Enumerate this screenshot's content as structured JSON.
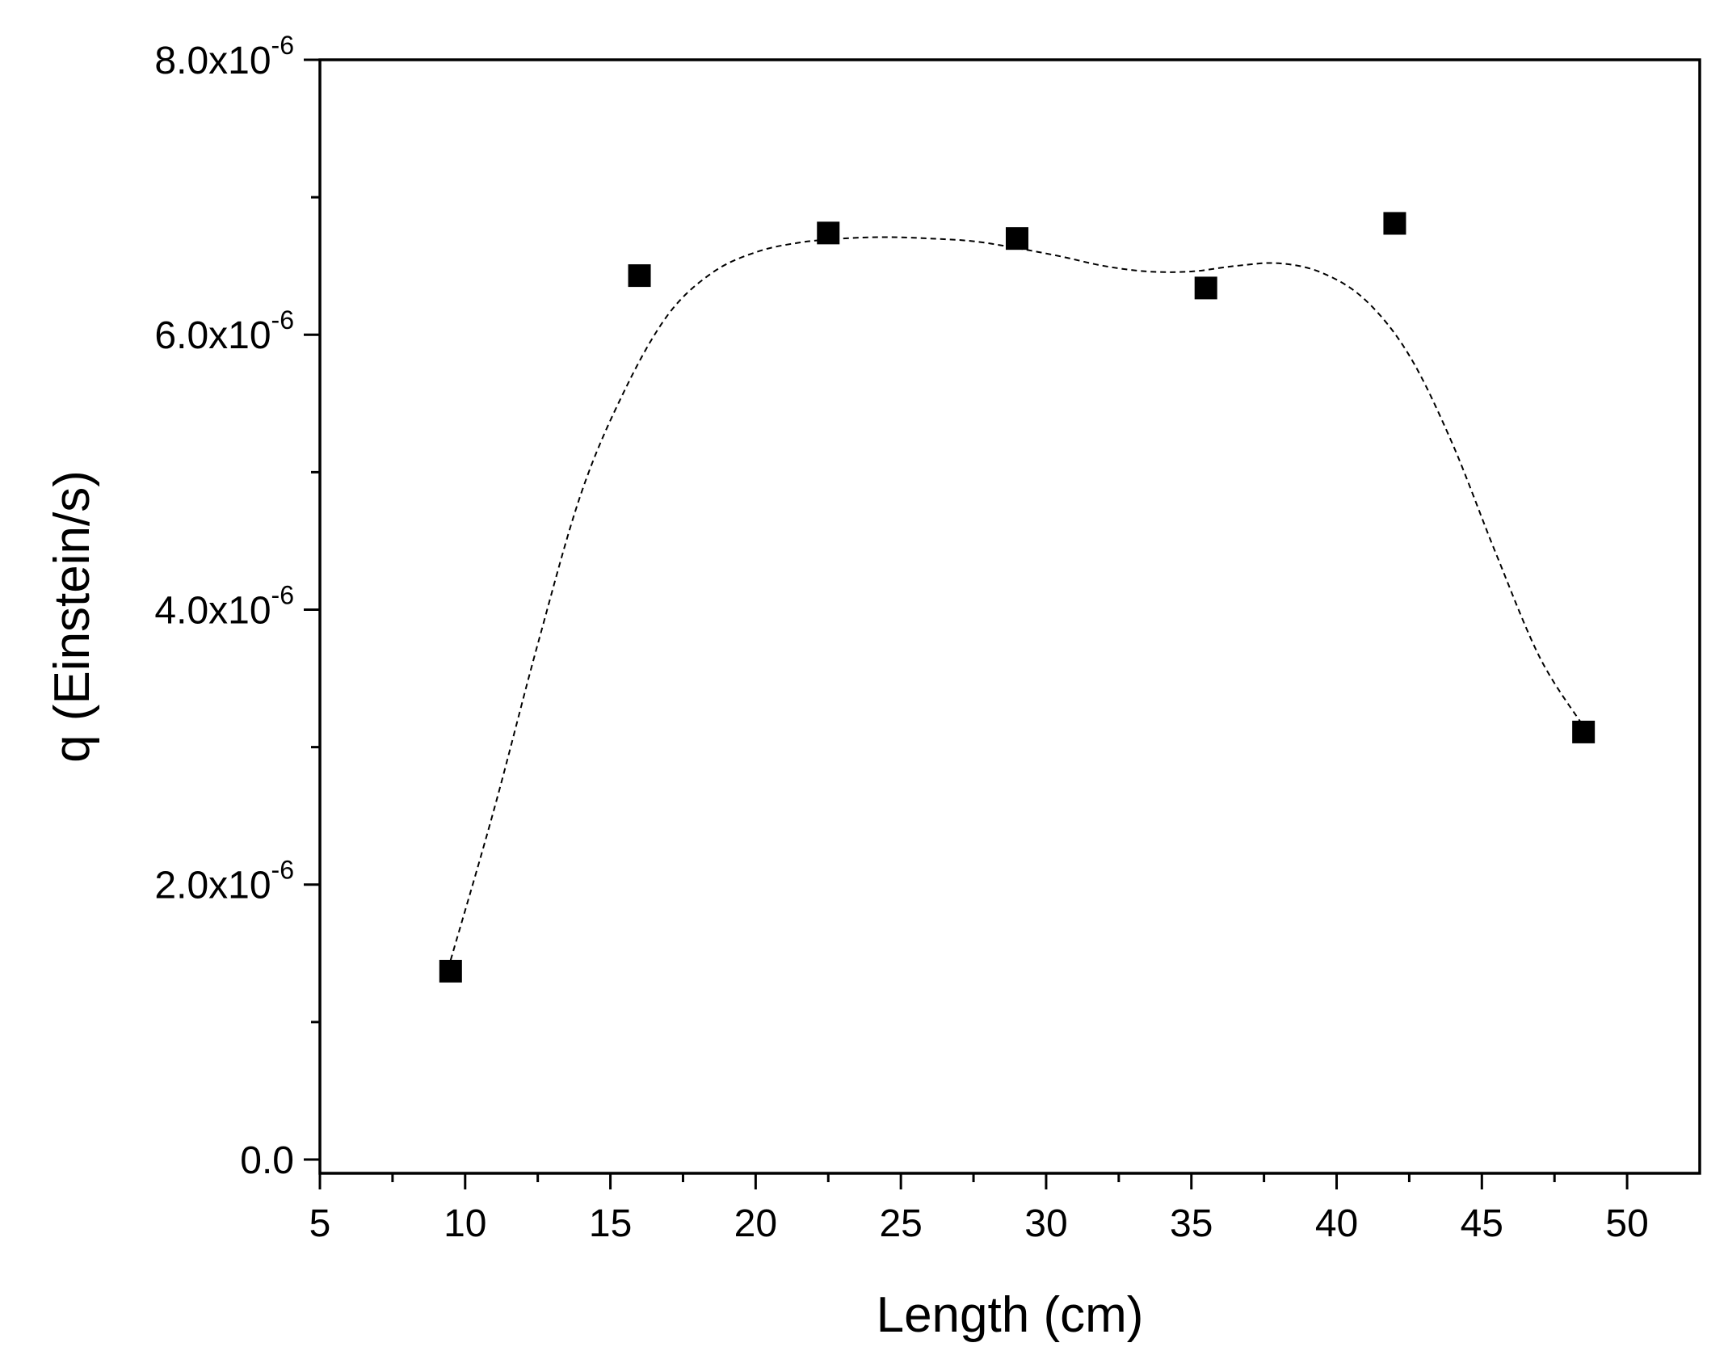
{
  "chart_data": {
    "type": "scatter",
    "title": "",
    "xlabel": "Length (cm)",
    "ylabel": "q (Einstein/s)",
    "xlim": [
      5,
      52.5
    ],
    "ylim": [
      -1e-07,
      8e-06
    ],
    "x_ticks": [
      5,
      10,
      15,
      20,
      25,
      30,
      35,
      40,
      45,
      50
    ],
    "x_tick_labels": [
      "5",
      "10",
      "15",
      "20",
      "25",
      "30",
      "35",
      "40",
      "45",
      "50"
    ],
    "y_ticks": [
      {
        "value": 0,
        "mantissa": "0.0",
        "exponent": ""
      },
      {
        "value": 2e-06,
        "mantissa": "2.0x10",
        "exponent": "-6"
      },
      {
        "value": 4e-06,
        "mantissa": "4.0x10",
        "exponent": "-6"
      },
      {
        "value": 6e-06,
        "mantissa": "6.0x10",
        "exponent": "-6"
      },
      {
        "value": 8e-06,
        "mantissa": "8.0x10",
        "exponent": "-6"
      }
    ],
    "grid": false,
    "legend": "none",
    "series": [
      {
        "style": "filled-square-markers",
        "color": "#000000",
        "x": [
          9.5,
          16,
          22.5,
          29,
          35.5,
          42,
          48.5
        ],
        "y": [
          1.37e-06,
          6.43e-06,
          6.74e-06,
          6.7e-06,
          6.34e-06,
          6.81e-06,
          3.11e-06
        ]
      },
      {
        "style": "dashed-smooth-curve",
        "color": "#000000",
        "x": [
          9.5,
          11,
          12.5,
          14,
          15.5,
          17,
          18.5,
          20,
          21.5,
          23,
          24.5,
          26,
          27.5,
          29,
          30.5,
          32,
          33.5,
          35,
          36.5,
          38,
          39.5,
          41,
          42.5,
          44,
          45.5,
          47,
          48.5
        ],
        "y": [
          1.45e-06,
          2.55e-06,
          3.75e-06,
          4.85e-06,
          5.6e-06,
          6.15e-06,
          6.45e-06,
          6.6e-06,
          6.67e-06,
          6.7e-06,
          6.71e-06,
          6.7e-06,
          6.68e-06,
          6.63e-06,
          6.57e-06,
          6.5e-06,
          6.46e-06,
          6.46e-06,
          6.5e-06,
          6.52e-06,
          6.45e-06,
          6.25e-06,
          5.85e-06,
          5.2e-06,
          4.4e-06,
          3.65e-06,
          3.15e-06
        ]
      }
    ]
  }
}
